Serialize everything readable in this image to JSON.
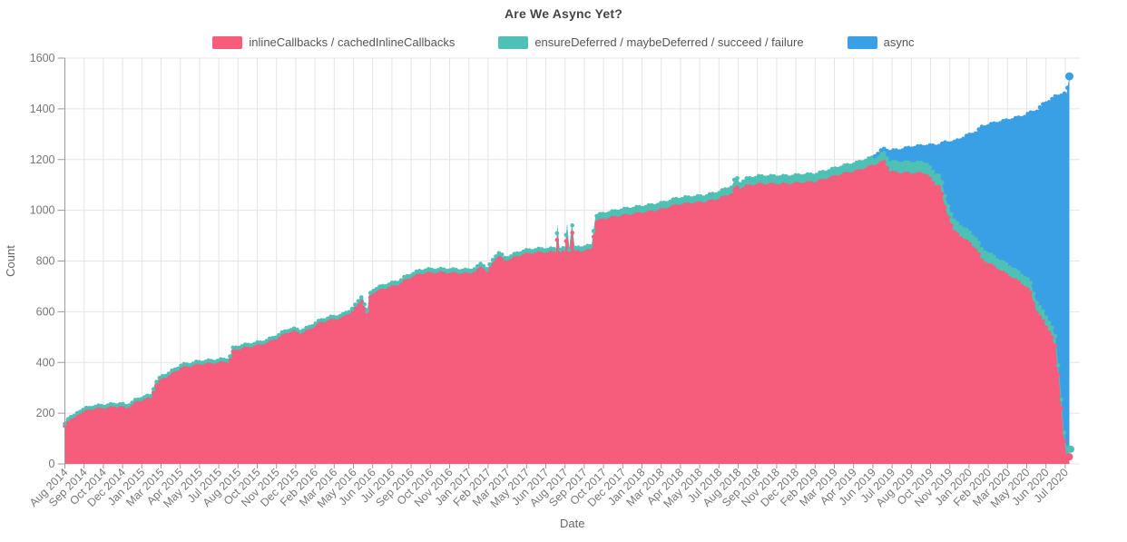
{
  "chart_data": {
    "type": "area",
    "stacked": true,
    "title": "Are We Async Yet?",
    "xlabel": "Date",
    "ylabel": "Count",
    "ylim": [
      0,
      1600
    ],
    "yticks": [
      0,
      200,
      400,
      600,
      800,
      1000,
      1200,
      1400,
      1600
    ],
    "grid": true,
    "legend_position": "top-center",
    "x_unit": "months since Aug 2014",
    "xtick_interval_months": 1.3846,
    "xtick_labels": [
      "Aug 2014",
      "Sep 2014",
      "Oct 2014",
      "Dec 2014",
      "Jan 2015",
      "Mar 2015",
      "Apr 2015",
      "May 2015",
      "Jul 2015",
      "Aug 2015",
      "Oct 2015",
      "Nov 2015",
      "Dec 2015",
      "Feb 2016",
      "Mar 2016",
      "May 2016",
      "Jun 2016",
      "Jul 2016",
      "Sep 2016",
      "Oct 2016",
      "Nov 2016",
      "Jan 2017",
      "Feb 2017",
      "Mar 2017",
      "May 2017",
      "Jun 2017",
      "Aug 2017",
      "Sep 2017",
      "Oct 2017",
      "Dec 2017",
      "Jan 2018",
      "Mar 2018",
      "Apr 2018",
      "May 2018",
      "Jul 2018",
      "Aug 2018",
      "Sep 2018",
      "Nov 2018",
      "Dec 2018",
      "Feb 2019",
      "Mar 2019",
      "Apr 2019",
      "Jun 2019",
      "Jul 2019",
      "Aug 2019",
      "Oct 2019",
      "Nov 2019",
      "Jan 2020",
      "Feb 2020",
      "Mar 2020",
      "May 2020",
      "Jun 2020",
      "Jul 2020"
    ],
    "x": [
      0,
      0.3,
      0.6,
      1,
      2,
      3,
      4,
      4.4,
      5,
      5.6,
      6.2,
      6.5,
      7,
      7.5,
      8,
      8.4,
      9,
      9.6,
      10,
      11,
      11.8,
      12.1,
      12.6,
      13,
      14,
      14.6,
      15,
      15.5,
      16,
      16.6,
      17,
      17.5,
      18,
      18.5,
      19,
      20,
      20.6,
      21,
      21.4,
      21.65,
      21.75,
      21.9,
      22.2,
      23,
      24,
      24.5,
      25,
      25.5,
      26,
      27,
      28,
      29,
      29.6,
      30,
      30.4,
      31,
      31.3,
      31.6,
      32,
      33,
      34,
      35,
      35.35,
      35.45,
      35.6,
      36,
      36.15,
      36.3,
      36.5,
      36.7,
      37,
      37.9,
      38.2,
      39,
      40,
      41,
      42,
      43,
      44,
      45,
      46,
      47,
      48,
      48.3,
      48.6,
      49,
      50,
      51,
      52,
      53,
      54,
      55,
      56,
      57,
      58,
      58.6,
      59,
      59.4,
      60,
      61,
      62,
      62.6,
      63,
      63.4,
      64,
      65,
      65.6,
      66,
      67,
      68,
      69,
      69.5,
      70,
      70.5,
      71,
      71.3,
      71.6,
      71.9,
      72.1,
      72.3
    ],
    "series": [
      {
        "name": "inlineCallbacks / cachedInlineCallbacks",
        "color": "#F65C7C",
        "values": [
          150,
          178,
          172,
          196,
          213,
          218,
          224,
          216,
          235,
          250,
          255,
          305,
          330,
          342,
          360,
          374,
          378,
          386,
          388,
          392,
          398,
          440,
          448,
          452,
          462,
          472,
          482,
          496,
          512,
          516,
          508,
          521,
          538,
          552,
          560,
          570,
          592,
          612,
          648,
          592,
          568,
          650,
          668,
          685,
          700,
          718,
          730,
          742,
          746,
          748,
          746,
          744,
          752,
          774,
          749,
          803,
          817,
          792,
          799,
          820,
          827,
          828,
          828,
          912,
          828,
          830,
          918,
          830,
          922,
          830,
          832,
          838,
          952,
          962,
          972,
          980,
          988,
          998,
          1015,
          1022,
          1026,
          1038,
          1060,
          1092,
          1078,
          1090,
          1098,
          1098,
          1098,
          1103,
          1106,
          1122,
          1138,
          1149,
          1168,
          1180,
          1188,
          1146,
          1142,
          1140,
          1140,
          1096,
          1094,
          1000,
          912,
          870,
          842,
          800,
          768,
          735,
          700,
          675,
          590,
          552,
          505,
          460,
          300,
          100,
          30,
          28
        ]
      },
      {
        "name": "ensureDeferred / maybeDeferred / succeed / failure",
        "color": "#4EC0B4",
        "values": [
          8,
          10,
          10,
          12,
          12,
          12,
          12,
          12,
          12,
          12,
          13,
          14,
          15,
          15,
          15,
          15,
          15,
          15,
          15,
          15,
          15,
          15,
          15,
          15,
          15,
          15,
          15,
          15,
          15,
          15,
          15,
          15,
          15,
          15,
          15,
          16,
          16,
          18,
          18,
          18,
          18,
          18,
          18,
          18,
          18,
          18,
          18,
          18,
          18,
          18,
          18,
          18,
          18,
          18,
          18,
          18,
          18,
          18,
          18,
          18,
          18,
          18,
          18,
          30,
          18,
          18,
          30,
          18,
          30,
          18,
          20,
          20,
          26,
          26,
          28,
          28,
          28,
          28,
          28,
          28,
          28,
          30,
          32,
          42,
          28,
          32,
          34,
          34,
          34,
          34,
          34,
          34,
          34,
          36,
          36,
          36,
          36,
          42,
          45,
          45,
          45,
          45,
          45,
          45,
          45,
          45,
          45,
          45,
          42,
          42,
          40,
          40,
          40,
          40,
          38,
          38,
          38,
          35,
          32,
          30
        ]
      },
      {
        "name": "async",
        "color": "#39A0E5",
        "values": [
          0,
          0,
          0,
          0,
          0,
          0,
          0,
          0,
          0,
          0,
          0,
          0,
          0,
          0,
          0,
          0,
          0,
          0,
          0,
          0,
          0,
          0,
          0,
          0,
          0,
          0,
          0,
          0,
          0,
          0,
          0,
          0,
          0,
          0,
          0,
          0,
          0,
          0,
          0,
          0,
          0,
          0,
          0,
          0,
          0,
          0,
          0,
          0,
          0,
          0,
          0,
          0,
          0,
          0,
          0,
          0,
          0,
          0,
          0,
          0,
          0,
          0,
          0,
          0,
          0,
          0,
          0,
          0,
          0,
          0,
          0,
          0,
          0,
          0,
          0,
          0,
          0,
          0,
          0,
          0,
          0,
          0,
          0,
          0,
          0,
          0,
          0,
          0,
          0,
          0,
          0,
          0,
          0,
          0,
          0,
          12,
          18,
          44,
          48,
          62,
          68,
          112,
          118,
          222,
          310,
          378,
          420,
          482,
          532,
          578,
          628,
          668,
          762,
          830,
          890,
          950,
          1115,
          1322,
          1398,
          1470
        ]
      }
    ],
    "colors": {
      "grid": "#E4E4E4",
      "axis": "#999999",
      "tick_text": "#777777",
      "axis_title_text": "#666666",
      "title_text": "#444444",
      "legend_text": "#555555"
    }
  }
}
